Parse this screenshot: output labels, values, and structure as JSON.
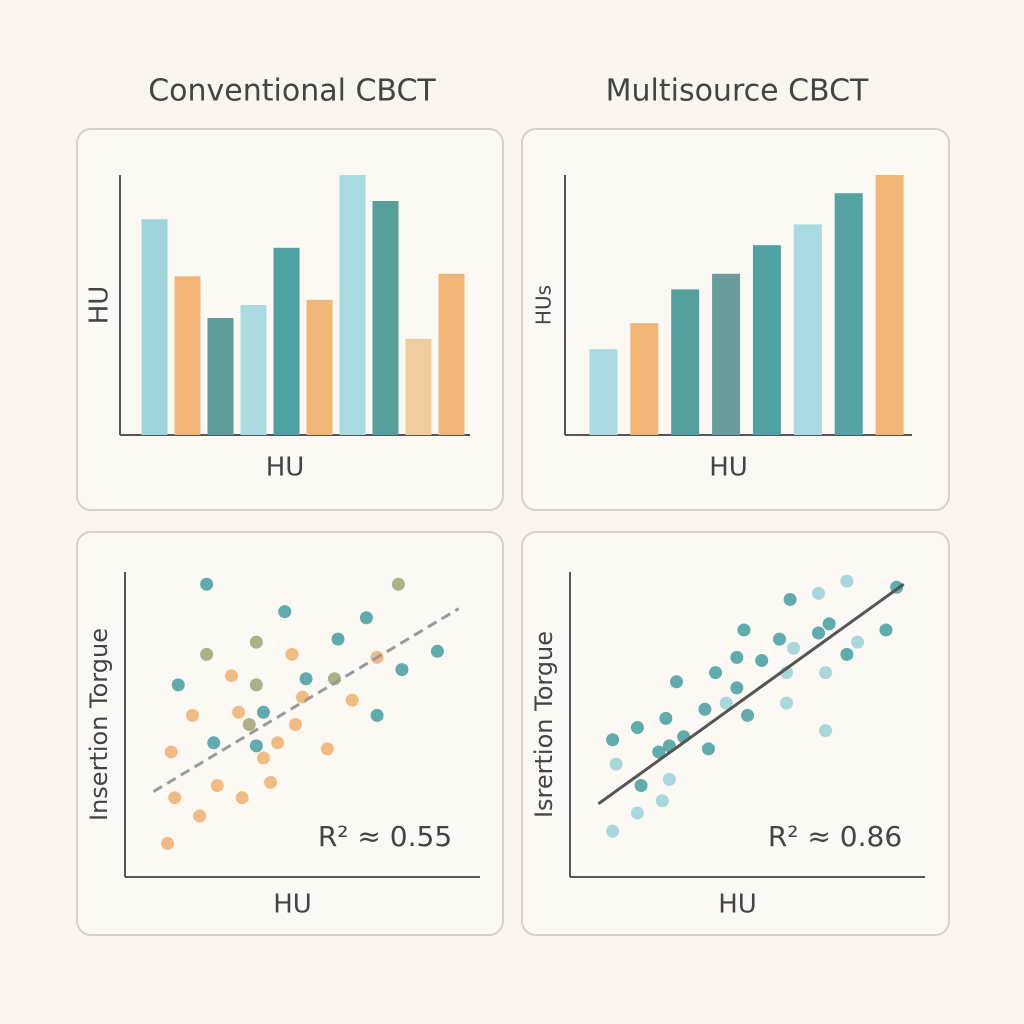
{
  "chart_data": [
    {
      "type": "bar",
      "title": "Conventional CBCT",
      "x_label": "HU",
      "y_label": "HU",
      "categories": [
        null,
        null,
        null,
        null,
        null,
        null,
        null,
        null,
        null,
        null
      ],
      "values": [
        83,
        61,
        45,
        50,
        72,
        52,
        100,
        90,
        37,
        62
      ],
      "colors": [
        "#9fd4d9",
        "#f0b577",
        "#5e9c97",
        "#a9dbe0",
        "#4fa2a3",
        "#f0b577",
        "#a9dbe0",
        "#55a09d",
        "#f0cd9c",
        "#f0b577"
      ],
      "ylim": [
        0,
        100
      ]
    },
    {
      "type": "bar",
      "title": "Multisource CBCT",
      "x_label": "HU",
      "y_label": "HUs",
      "categories": [
        null,
        null,
        null,
        null,
        null,
        null,
        null,
        null
      ],
      "values": [
        33,
        43,
        56,
        62,
        73,
        81,
        93,
        100
      ],
      "colors": [
        "#a9dbe0",
        "#f0b577",
        "#55a09d",
        "#6a9c9c",
        "#4fa2a3",
        "#a9dbe0",
        "#55a3a3",
        "#f0b577"
      ],
      "ylim": [
        0,
        100
      ]
    },
    {
      "type": "scatter",
      "x_label": "HU",
      "y_label": "Insertion Torgue",
      "annotation": "R² ≈ 0.55",
      "xlim": [
        0,
        100
      ],
      "ylim": [
        0,
        100
      ],
      "series": [
        {
          "color": "#4fa2a3",
          "x": [
            23,
            45,
            60,
            68,
            88,
            78,
            15,
            71,
            39,
            25,
            37,
            51
          ],
          "y": [
            96,
            87,
            78,
            85,
            74,
            68,
            63,
            53,
            54,
            44,
            43,
            65
          ]
        },
        {
          "color": "#f0b577",
          "x": [
            47,
            30,
            50,
            32,
            19,
            48,
            43,
            57,
            13,
            39,
            26,
            41,
            14,
            33,
            21,
            12,
            64,
            71
          ],
          "y": [
            73,
            66,
            59,
            54,
            53,
            50,
            44,
            42,
            41,
            39,
            30,
            31,
            26,
            26,
            20,
            11,
            58,
            72
          ]
        },
        {
          "color": "#a8a67c",
          "x": [
            37,
            23,
            37,
            35,
            59,
            77
          ],
          "y": [
            77,
            73,
            63,
            50,
            65,
            96
          ]
        }
      ],
      "trendline": {
        "x": [
          8,
          94
        ],
        "y": [
          28,
          88
        ],
        "color": "#9a9a9a",
        "dashed": true
      }
    },
    {
      "type": "scatter",
      "x_label": "HU",
      "y_label": "Isrertion Torgue",
      "annotation": "R² ≈ 0.86",
      "xlim": [
        0,
        100
      ],
      "ylim": [
        0,
        100
      ],
      "series": [
        {
          "color": "#4fa2a3",
          "x": [
            92,
            62,
            73,
            89,
            70,
            49,
            59,
            54,
            47,
            78,
            41,
            30,
            47,
            38,
            27,
            50,
            19,
            32,
            12,
            28,
            25,
            39,
            20
          ],
          "y": [
            95,
            91,
            83,
            81,
            80,
            81,
            78,
            71,
            72,
            73,
            67,
            64,
            62,
            55,
            52,
            53,
            49,
            46,
            45,
            43,
            41,
            42,
            30
          ]
        },
        {
          "color": "#9fd4d9",
          "x": [
            78,
            70,
            63,
            81,
            61,
            72,
            44,
            61,
            13,
            28,
            26,
            19,
            12,
            72
          ],
          "y": [
            97,
            93,
            75,
            77,
            67,
            67,
            57,
            57,
            37,
            32,
            25,
            21,
            15,
            48
          ]
        }
      ],
      "trendline": {
        "x": [
          8,
          94
        ],
        "y": [
          24,
          96
        ],
        "color": "#555555",
        "dashed": false
      }
    }
  ]
}
